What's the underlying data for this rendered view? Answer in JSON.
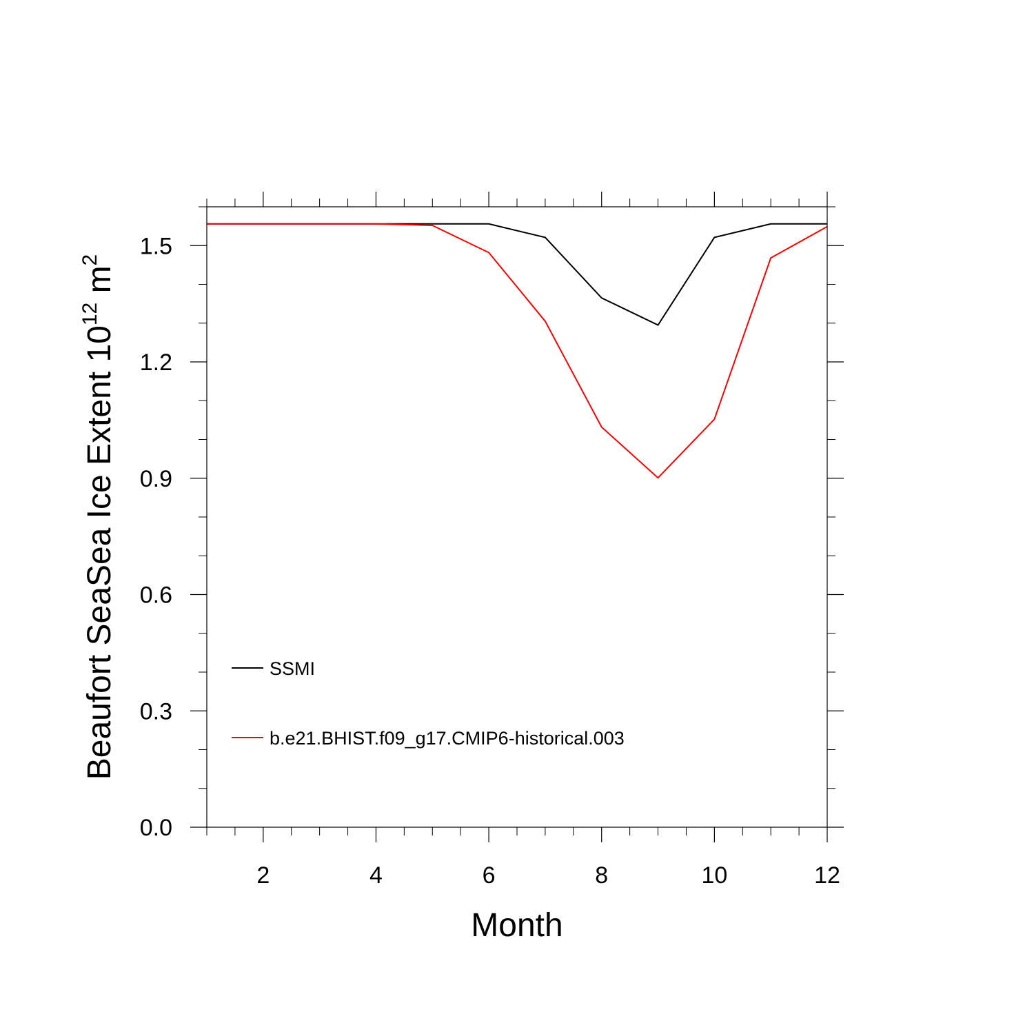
{
  "chart_data": {
    "type": "line",
    "xlabel": "Month",
    "ylabel_main": "Beaufort SeaSea Ice Extent 10",
    "ylabel_exp1": "12",
    "ylabel_mid": " m",
    "ylabel_exp2": "2",
    "xlim": [
      1,
      12
    ],
    "ylim": [
      0.0,
      1.6
    ],
    "x_ticks": [
      2,
      4,
      6,
      8,
      10,
      12
    ],
    "x_tick_labels": [
      "2",
      "4",
      "6",
      "8",
      "10",
      "12"
    ],
    "x_minor_step": 0.5,
    "y_ticks": [
      0.0,
      0.3,
      0.6,
      0.9,
      1.2,
      1.5
    ],
    "y_tick_labels": [
      "0.0",
      "0.3",
      "0.6",
      "0.9",
      "1.2",
      "1.5"
    ],
    "y_minor_step": 0.1,
    "grid": false,
    "legend_position": "lower-left",
    "x": [
      1,
      2,
      3,
      4,
      5,
      6,
      7,
      8,
      9,
      10,
      11,
      12
    ],
    "series": [
      {
        "name": "SSMI",
        "color": "#000000",
        "values": [
          1.556,
          1.556,
          1.556,
          1.556,
          1.556,
          1.556,
          1.521,
          1.365,
          1.295,
          1.521,
          1.556,
          1.556
        ]
      },
      {
        "name": "b.e21.BHIST.f09_g17.CMIP6-historical.003",
        "color": "#ff0000",
        "values": [
          1.556,
          1.556,
          1.556,
          1.556,
          1.552,
          1.482,
          1.305,
          1.032,
          0.901,
          1.052,
          1.468,
          1.549
        ]
      }
    ]
  }
}
